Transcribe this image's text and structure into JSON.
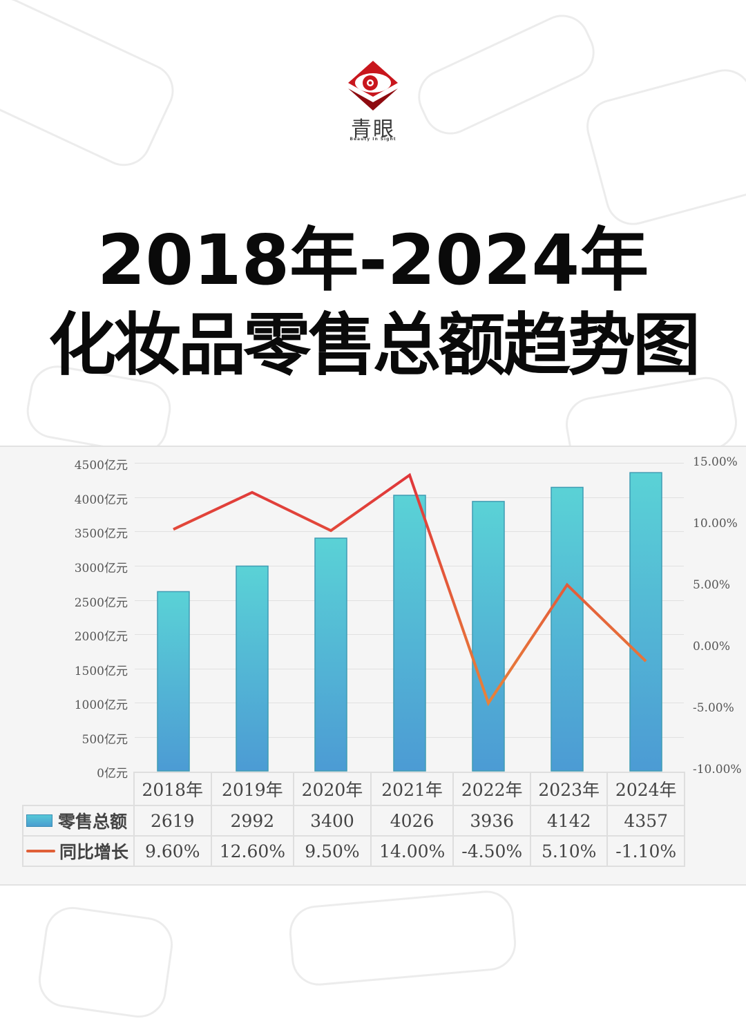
{
  "logo": {
    "name": "青眼",
    "tagline": "Beauty In Sight",
    "colors": {
      "red": "#c8161d",
      "dark_red": "#8e0b10"
    }
  },
  "title": {
    "line1": "2018年-2024年",
    "line2": "化妆品零售总额趋势图"
  },
  "chart_data": {
    "type": "bar+line",
    "title": "2018年-2024年化妆品零售总额趋势图",
    "categories": [
      "2018年",
      "2019年",
      "2020年",
      "2021年",
      "2022年",
      "2023年",
      "2024年"
    ],
    "series": [
      {
        "name": "零售总额",
        "type": "bar",
        "axis": "left",
        "unit": "亿元",
        "values": [
          2619,
          2992,
          3400,
          4026,
          3936,
          4142,
          4357
        ],
        "color_top": "#5ad2d6",
        "color_bottom": "#4c9bd4"
      },
      {
        "name": "同比增长",
        "type": "line",
        "axis": "right",
        "unit": "%",
        "values": [
          9.6,
          12.6,
          9.5,
          14.0,
          -4.5,
          5.1,
          -1.1
        ],
        "color_start": "#e0363a",
        "color_end": "#e8823a"
      }
    ],
    "left_axis": {
      "ticks": [
        "4500亿元",
        "4000亿元",
        "3500亿元",
        "3000亿元",
        "2500亿元",
        "2000亿元",
        "1500亿元",
        "1000亿元",
        "500亿元",
        "0亿元"
      ],
      "ylim": [
        0,
        4500
      ]
    },
    "right_axis": {
      "ticks": [
        "15.00%",
        "10.00%",
        "5.00%",
        "0.00%",
        "-5.00%",
        "-10.00%"
      ],
      "ylim": [
        -10,
        15
      ]
    },
    "grid": true,
    "legend_position": "data-table"
  },
  "table": {
    "row_labels": [
      "零售总额",
      "同比增长"
    ],
    "retail": [
      "2619",
      "2992",
      "3400",
      "4026",
      "3936",
      "4142",
      "4357"
    ],
    "growth": [
      "9.60%",
      "12.60%",
      "9.50%",
      "14.00%",
      "-4.50%",
      "5.10%",
      "-1.10%"
    ],
    "years": [
      "2018年",
      "2019年",
      "2020年",
      "2021年",
      "2022年",
      "2023年",
      "2024年"
    ]
  }
}
